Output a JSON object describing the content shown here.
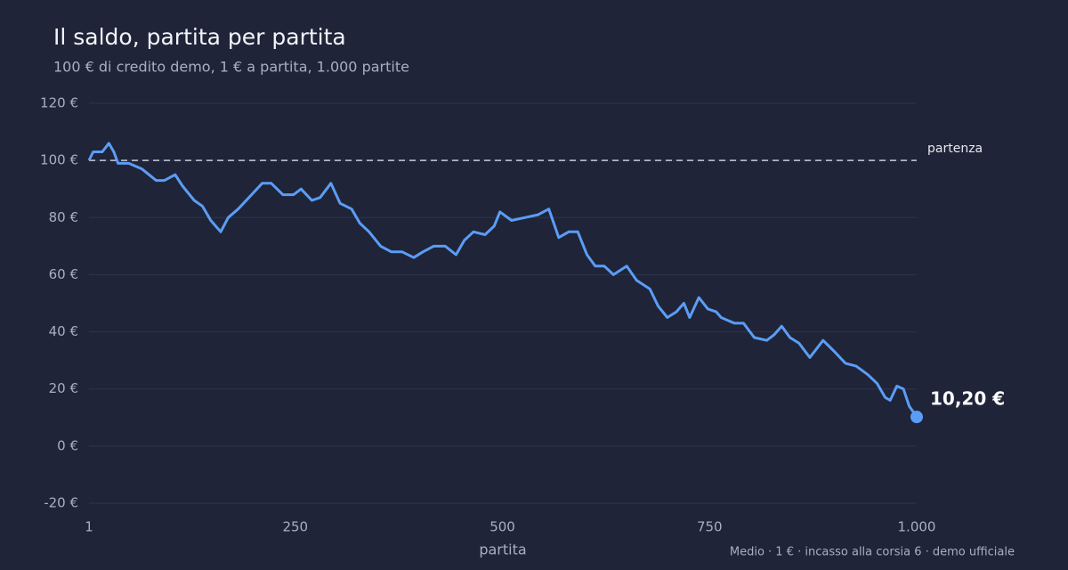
{
  "chart_data": {
    "type": "line",
    "title": "Il saldo, partita per partita",
    "subtitle": "100 € di credito demo, 1 € a partita, 1.000 partite",
    "x_label": "partita",
    "footnote": "Medio · 1 € · incasso alla corsia 6 · demo ufficiale",
    "x": [
      1,
      6,
      17,
      25,
      31,
      36,
      49,
      65,
      82,
      92,
      105,
      114,
      128,
      138,
      148,
      160,
      169,
      181,
      194,
      210,
      221,
      235,
      248,
      257,
      270,
      280,
      293,
      304,
      318,
      328,
      339,
      353,
      366,
      379,
      393,
      404,
      417,
      431,
      444,
      454,
      465,
      479,
      490,
      497,
      511,
      527,
      543,
      556,
      568,
      580,
      591,
      602,
      612,
      623,
      634,
      650,
      662,
      678,
      688,
      699,
      710,
      719,
      726,
      737,
      748,
      758,
      764,
      772,
      780,
      791,
      804,
      819,
      828,
      837,
      847,
      858,
      871,
      887,
      901,
      914,
      927,
      941,
      952,
      962,
      968,
      976,
      984,
      991,
      1000
    ],
    "series": [
      {
        "name": "saldo",
        "color": "#5b9df5",
        "values": [
          100,
          103,
          103,
          106,
          103,
          99,
          99,
          97,
          93,
          93,
          95,
          91,
          86,
          84,
          79,
          75,
          80,
          83,
          87,
          92,
          92,
          88,
          88,
          90,
          86,
          87,
          92,
          85,
          83,
          78,
          75,
          70,
          68,
          68,
          66,
          68,
          70,
          70,
          67,
          72,
          75,
          74,
          77,
          82,
          79,
          80,
          81,
          83,
          73,
          75,
          75,
          67,
          63,
          63,
          60,
          63,
          58,
          55,
          49,
          45,
          47,
          50,
          45,
          52,
          48,
          47,
          45,
          44,
          43,
          43,
          38,
          37,
          39,
          42,
          38,
          36,
          31,
          37,
          33,
          29,
          28,
          25,
          22,
          17,
          16,
          21,
          20,
          14,
          10.2
        ]
      }
    ],
    "end_label": {
      "x": 1000,
      "y": 10.2,
      "label": "10,20 €"
    },
    "reference_line": {
      "y": 100,
      "label": "partenza"
    },
    "xlim": [
      1,
      1000
    ],
    "xticks": [
      1,
      250,
      500,
      750,
      {
        "value": 1000,
        "label": "1.000"
      }
    ],
    "ylim": [
      -20,
      120
    ],
    "yticks": [
      {
        "value": -20,
        "label": "-20 €"
      },
      {
        "value": 0,
        "label": "0 €"
      },
      {
        "value": 20,
        "label": "20 €"
      },
      {
        "value": 40,
        "label": "40 €"
      },
      {
        "value": 60,
        "label": "60 €"
      },
      {
        "value": 80,
        "label": "80 €"
      },
      {
        "value": 100,
        "label": "100 €"
      },
      {
        "value": 120,
        "label": "120 €"
      }
    ],
    "grid": true
  }
}
